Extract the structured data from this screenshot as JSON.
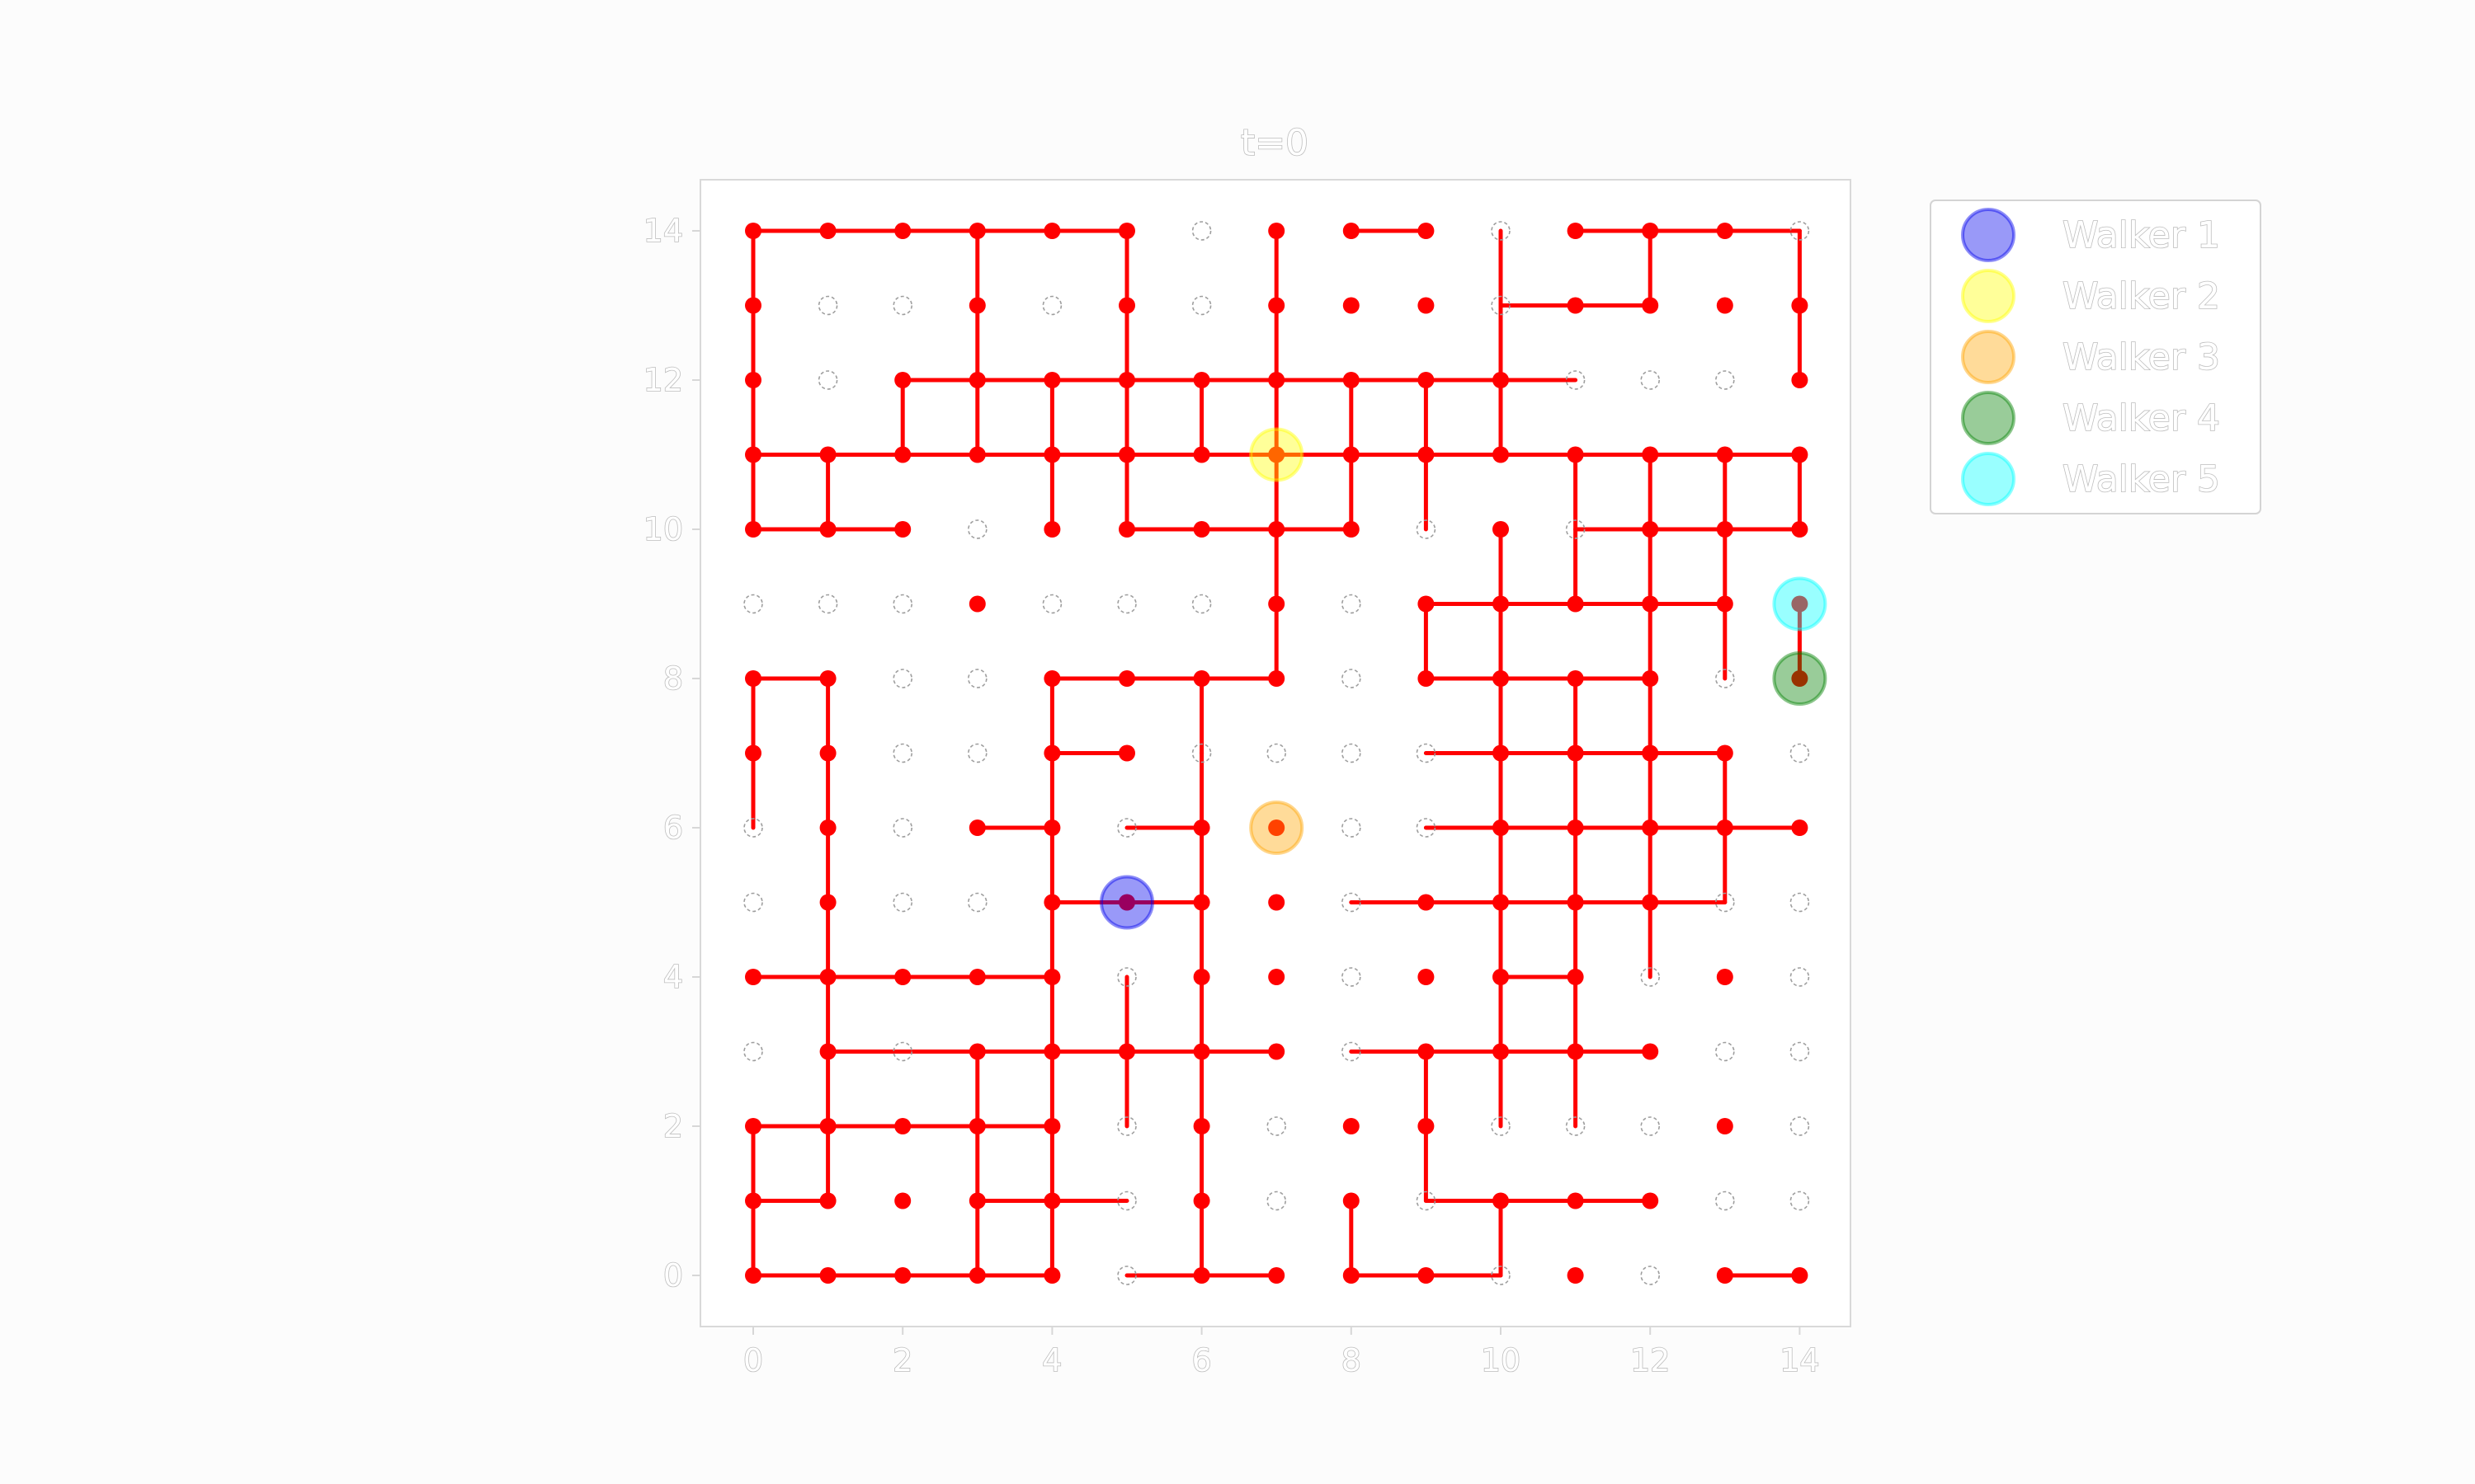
{
  "chart_data": {
    "type": "scatter",
    "title": "t=0",
    "xlabel": "",
    "ylabel": "",
    "xlim": [
      -0.7,
      14.7
    ],
    "ylim": [
      -0.7,
      14.7
    ],
    "xticks": [
      0,
      2,
      4,
      6,
      8,
      10,
      12,
      14
    ],
    "yticks": [
      0,
      2,
      4,
      6,
      8,
      10,
      12,
      14
    ],
    "grid": false,
    "legend_position": "upper-right-outside",
    "colors": {
      "bond": "#ff0000",
      "occupied": "#ff0000",
      "empty": "#9e9e9e",
      "axis": "#d7d7d7"
    },
    "open_rows": [
      "111111011101110",
      "100101011101111",
      "101111111110001",
      "111111111111111",
      "111011111010111",
      "000100010111111",
      "110011110111101",
      "110011000011110",
      "010110110011111",
      "010011110111100",
      "111110110111010",
      "010111110111100",
      "111110101100010",
      "111110101011100",
      "111110111101011"
    ],
    "h_bonds_rows": [
      "11111000100111",
      "00000000001100",
      "00111111111000",
      "11111111111111",
      "11000111000111",
      "00000000011110",
      "10001110011100",
      "00001000011110",
      "00010100011111",
      "00001100111110",
      "11110000001000",
      "01111110111100",
      "11110000000000",
      "10011000011100",
      "11110110110001"
    ],
    "v_bonds_rows": [
      "100101010010101",
      "100101010010001",
      "101111111110000",
      "110011011101111",
      "000000010011110",
      "000000010110111",
      "110010100011100",
      "110010100011110",
      "010010100011110",
      "010010100011100",
      "010011100011000",
      "010111100111000",
      "110110100100000",
      "100110101010000"
    ],
    "walkers": [
      {
        "name": "Walker 1",
        "x": 5,
        "y": 5,
        "color": "#0000ee"
      },
      {
        "name": "Walker 2",
        "x": 7,
        "y": 11,
        "color": "#ffff00"
      },
      {
        "name": "Walker 3",
        "x": 7,
        "y": 6,
        "color": "#ffa500"
      },
      {
        "name": "Walker 4",
        "x": 14,
        "y": 8,
        "color": "#008000"
      },
      {
        "name": "Walker 5",
        "x": 14,
        "y": 9,
        "color": "#00ffff"
      }
    ]
  }
}
